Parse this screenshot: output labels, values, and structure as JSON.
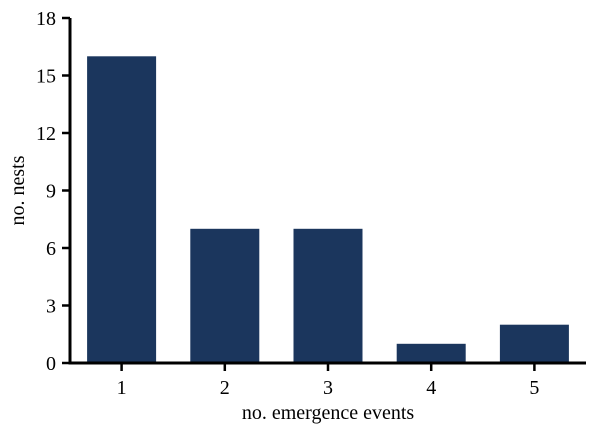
{
  "chart_data": {
    "type": "bar",
    "categories": [
      "1",
      "2",
      "3",
      "4",
      "5"
    ],
    "values": [
      16,
      7,
      7,
      1,
      2
    ],
    "title": "",
    "xlabel": "no. emergence events",
    "ylabel": "no. nests",
    "ylim": [
      0,
      18
    ],
    "yticks": [
      0,
      3,
      6,
      9,
      12,
      15,
      18
    ],
    "grid": false,
    "legend": "none",
    "bar_color": "#1b365d",
    "axis_color": "#000000"
  }
}
